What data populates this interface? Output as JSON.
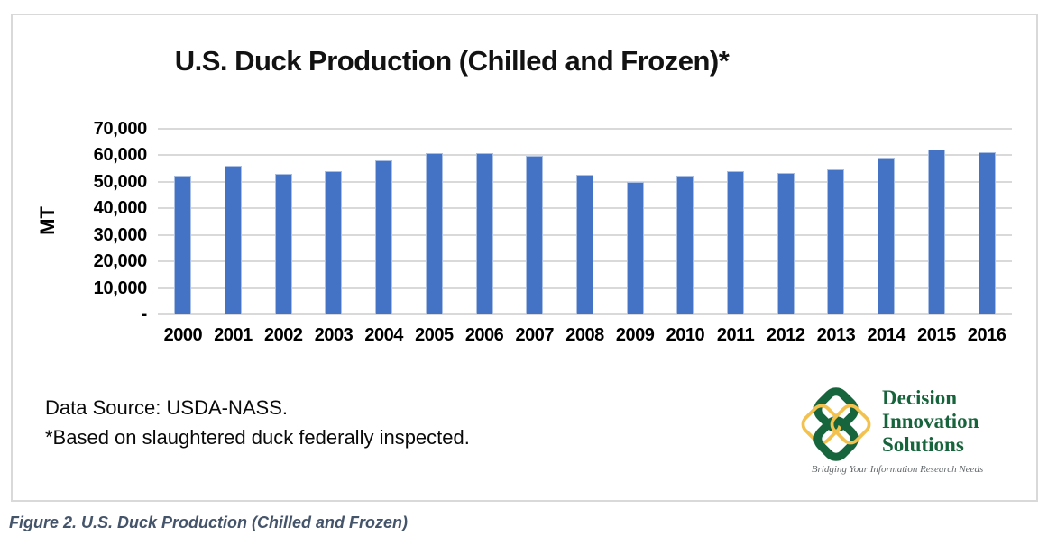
{
  "chart_data": {
    "type": "bar",
    "title": "U.S. Duck Production (Chilled and Frozen)*",
    "xlabel": "",
    "ylabel": "MT",
    "categories": [
      "2000",
      "2001",
      "2002",
      "2003",
      "2004",
      "2005",
      "2006",
      "2007",
      "2008",
      "2009",
      "2010",
      "2011",
      "2012",
      "2013",
      "2014",
      "2015",
      "2016"
    ],
    "values": [
      52400,
      56100,
      52900,
      54100,
      58000,
      60900,
      60900,
      59700,
      52600,
      49900,
      52200,
      54200,
      53500,
      54700,
      59300,
      62200,
      61200
    ],
    "ylim": [
      0,
      70000
    ],
    "ytick_interval": 10000,
    "ytick_labels": [
      "70,000",
      "60,000",
      "50,000",
      "40,000",
      "30,000",
      "20,000",
      "10,000",
      "-"
    ],
    "grid": true,
    "legend": "none",
    "bar_color": "#4472C4",
    "gridline_color": "#D9D9D9"
  },
  "footer": {
    "line1": "Data Source: USDA-NASS.",
    "line2": "*Based on slaughtered duck federally inspected."
  },
  "logo": {
    "name": [
      "Decision",
      "Innovation",
      "Solutions"
    ],
    "tagline": "Bridging Your Information Research Needs",
    "green": "#17653C",
    "gold": "#F2C14E",
    "text_color": "#17643C"
  },
  "caption": "Figure 2. U.S. Duck Production (Chilled and Frozen)"
}
